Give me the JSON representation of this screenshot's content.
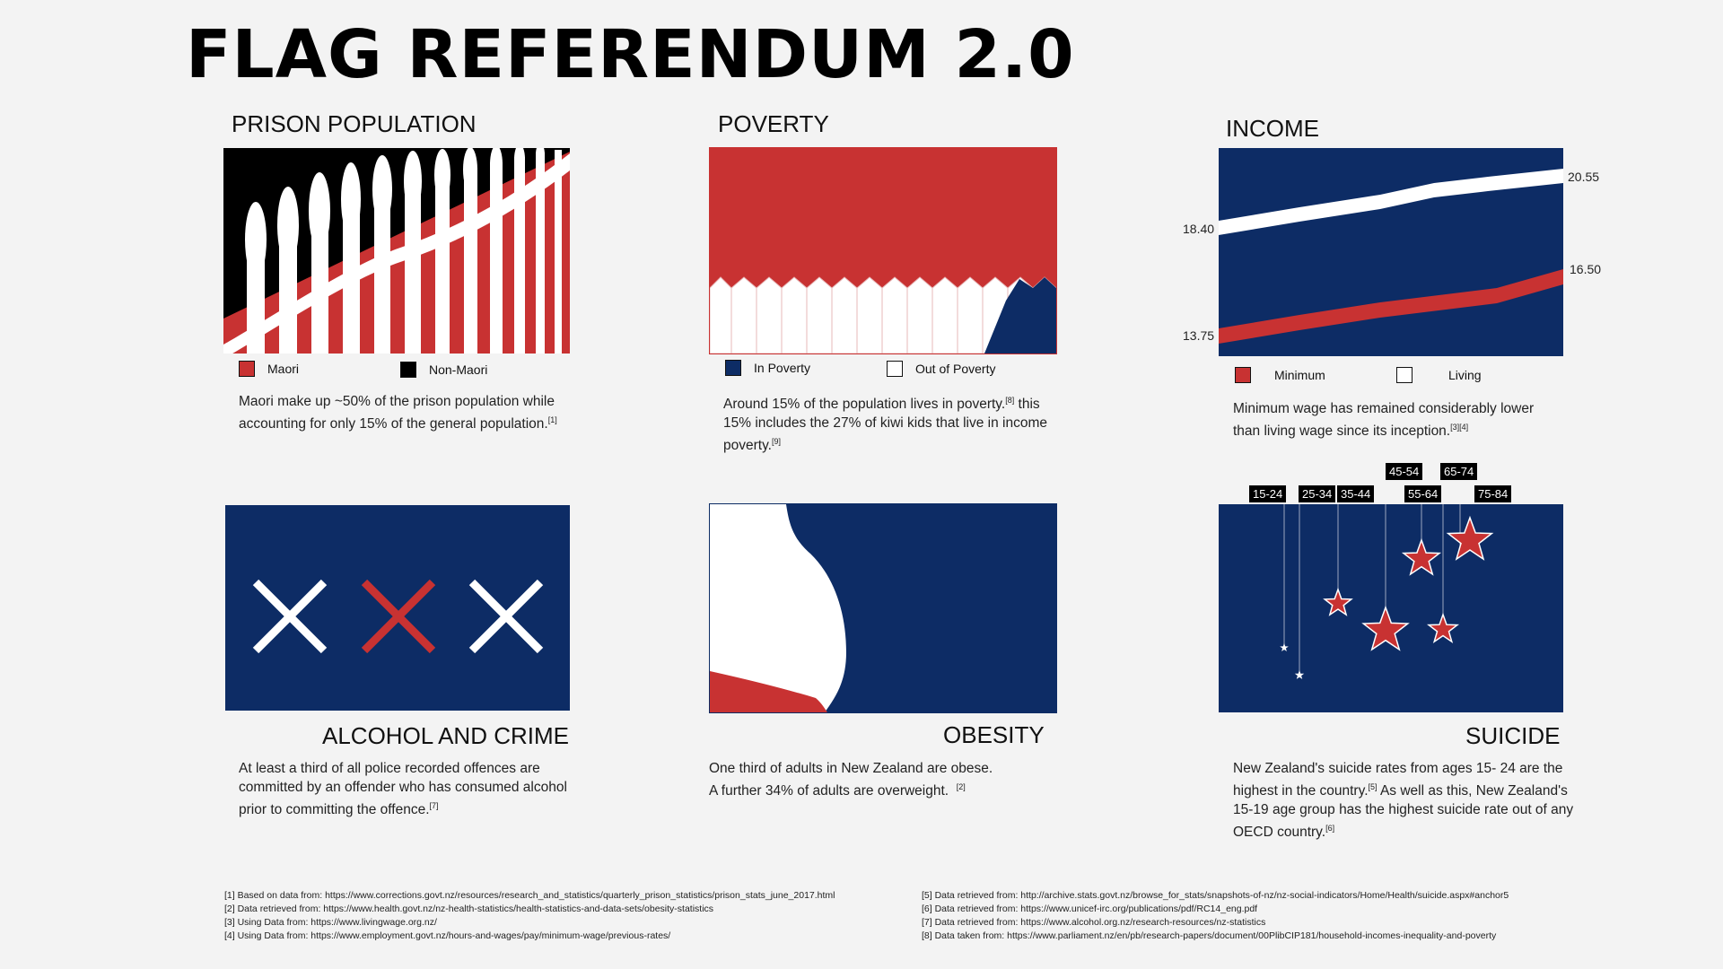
{
  "title": "FLAG REFERENDUM 2.0",
  "colors": {
    "red": "#c83232",
    "navy": "#0d2c65",
    "white": "#ffffff",
    "black": "#000000"
  },
  "prison": {
    "heading": "PRISON POPULATION",
    "legend": [
      "Maori",
      "Non-Maori"
    ],
    "desc": "Maori make up ~50% of the prison population while accounting for  only 15% of the general population.",
    "ref": "[1]"
  },
  "poverty": {
    "heading": "POVERTY",
    "legend": [
      "In Poverty",
      "Out of Poverty"
    ],
    "desc_a": "Around 15% of the population lives in poverty.",
    "ref_a": "[8]",
    "desc_b": " this 15% includes the 27% of kiwi kids that live in income poverty.",
    "ref_b": "[9]"
  },
  "income": {
    "heading": "INCOME",
    "legend": [
      "Minimum",
      "Living"
    ],
    "labels": {
      "living_start": "18.40",
      "living_end": "20.55",
      "min_start": "13.75",
      "min_end": "16.50"
    },
    "desc": "Minimum wage has remained considerably lower than living wage since its inception.",
    "ref": "[3][4]"
  },
  "alcohol": {
    "heading": "ALCOHOL AND CRIME",
    "desc": "At least a third of all police recorded offences are committed by an offender who has consumed alcohol prior to committing the offence.",
    "ref": "[7]"
  },
  "obesity": {
    "heading": "OBESITY",
    "desc_a": "One third of adults in New Zealand are obese.",
    "desc_b": "A further 34% of adults are overweight.",
    "ref": "[2]"
  },
  "suicide": {
    "heading": "SUICIDE",
    "ages": [
      "15-24",
      "25-34",
      "35-44",
      "45-54",
      "55-64",
      "65-74",
      "75-84"
    ],
    "desc_a": "New Zealand's suicide rates from ages 15- 24 are the highest in the country.",
    "ref_a": "[5]",
    "desc_b": " As well as this, New Zealand's 15-19 age group has the highest suicide rate out of any OECD country.",
    "ref_b": "[6]"
  },
  "references_left": [
    "[1] Based on data from: https://www.corrections.govt.nz/resources/research_and_statistics/quarterly_prison_statistics/prison_stats_june_2017.html",
    "[2] Data retrieved from: https://www.health.govt.nz/nz-health-statistics/health-statistics-and-data-sets/obesity-statistics",
    "[3] Using Data from: https://www.livingwage.org.nz/",
    "[4] Using Data from: https://www.employment.govt.nz/hours-and-wages/pay/minimum-wage/previous-rates/"
  ],
  "references_right": [
    "[5] Data retrieved from: http://archive.stats.govt.nz/browse_for_stats/snapshots-of-nz/nz-social-indicators/Home/Health/suicide.aspx#anchor5",
    "[6] Data retrieved from: https://www.unicef-irc.org/publications/pdf/RC14_eng.pdf",
    "[7] Data retrieved from: https://www.alcohol.org.nz/research-resources/nz-statistics",
    "[8] Data taken from: https://www.parliament.nz/en/pb/research-papers/document/00PlibCIP181/household-incomes-inequality-and-poverty"
  ]
}
